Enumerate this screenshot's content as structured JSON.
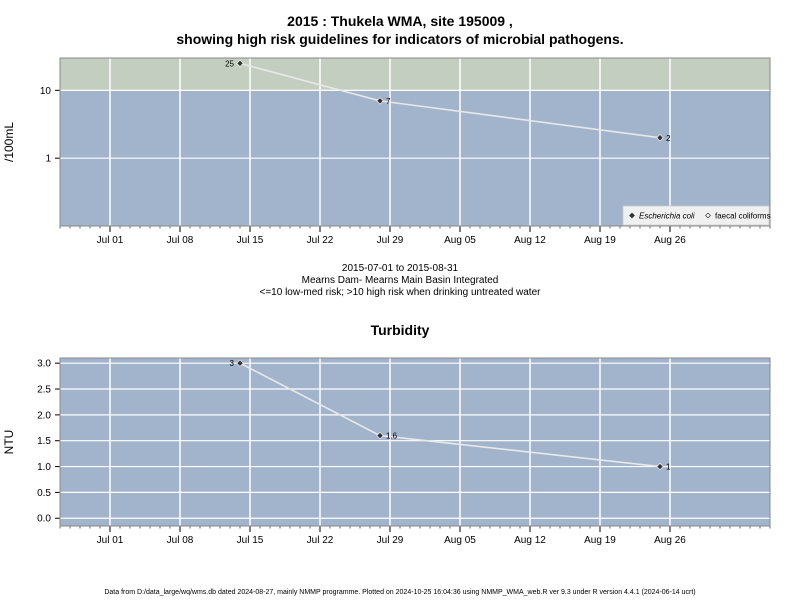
{
  "page": {
    "title_line1": "2015 : Thukela WMA, site 195009 ,",
    "title_line2": "showing high risk guidelines for indicators of microbial pathogens.",
    "info_line1": "2015-07-01 to 2015-08-31",
    "info_line2": "Mearns Dam- Mearns Main Basin Integrated",
    "info_line3": "<=10 low-med risk; >10 high risk when drinking untreated water",
    "footer": "Data from D:/data_large/wq/wms.db dated 2024-08-27, mainly NMMP programme. Plotted on 2024-10-25 16:04:36 using NMMP_WMA_web.R ver 9.3 under R version 4.4.1 (2024-06-14 ucrt)"
  },
  "colors": {
    "panel_bg": "#a2b4cc",
    "risk_band": "#c4cec0",
    "grid": "#ffffff",
    "series_line": "#e8e8e8",
    "marker": "#333333"
  },
  "chart_data": [
    {
      "type": "line",
      "title": "",
      "ylabel": "/100mL",
      "yscale": "log",
      "ylim": [
        0.1,
        30
      ],
      "yticks": [
        1,
        10
      ],
      "ytick_labels": [
        "1",
        "10"
      ],
      "xlim": [
        "2015-06-26",
        "2015-09-05"
      ],
      "xticks": [
        "2015-07-01",
        "2015-07-08",
        "2015-07-15",
        "2015-07-22",
        "2015-07-29",
        "2015-08-05",
        "2015-08-12",
        "2015-08-19",
        "2015-08-26"
      ],
      "xtick_labels": [
        "Jul 01",
        "Jul 08",
        "Jul 15",
        "Jul 22",
        "Jul 29",
        "Aug 05",
        "Aug 12",
        "Aug 19",
        "Aug 26"
      ],
      "guideline": 10,
      "legend_position": "bottom-right",
      "series": [
        {
          "name": "Escherichia coli",
          "marker": "diamond",
          "x": [
            "2015-07-14",
            "2015-07-28",
            "2015-08-25"
          ],
          "y": [
            25,
            7,
            2
          ],
          "labels": [
            "25",
            "7",
            "2"
          ]
        },
        {
          "name": "faecal coliforms",
          "marker": "open-diamond",
          "x": [],
          "y": [],
          "labels": []
        }
      ]
    },
    {
      "type": "line",
      "title": "Turbidity",
      "ylabel": "NTU",
      "ylim": [
        -0.15,
        3.1
      ],
      "yticks": [
        0,
        0.5,
        1,
        1.5,
        2,
        2.5,
        3
      ],
      "ytick_labels": [
        "0.0",
        "0.5",
        "1.0",
        "1.5",
        "2.0",
        "2.5",
        "3.0"
      ],
      "xlim": [
        "2015-06-26",
        "2015-09-05"
      ],
      "xticks": [
        "2015-07-01",
        "2015-07-08",
        "2015-07-15",
        "2015-07-22",
        "2015-07-29",
        "2015-08-05",
        "2015-08-12",
        "2015-08-19",
        "2015-08-26"
      ],
      "xtick_labels": [
        "Jul 01",
        "Jul 08",
        "Jul 15",
        "Jul 22",
        "Jul 29",
        "Aug 05",
        "Aug 12",
        "Aug 19",
        "Aug 26"
      ],
      "series": [
        {
          "marker": "diamond",
          "x": [
            "2015-07-14",
            "2015-07-28",
            "2015-08-25"
          ],
          "y": [
            3,
            1.6,
            1
          ],
          "labels": [
            "3",
            "1.6",
            "1"
          ]
        }
      ]
    }
  ]
}
